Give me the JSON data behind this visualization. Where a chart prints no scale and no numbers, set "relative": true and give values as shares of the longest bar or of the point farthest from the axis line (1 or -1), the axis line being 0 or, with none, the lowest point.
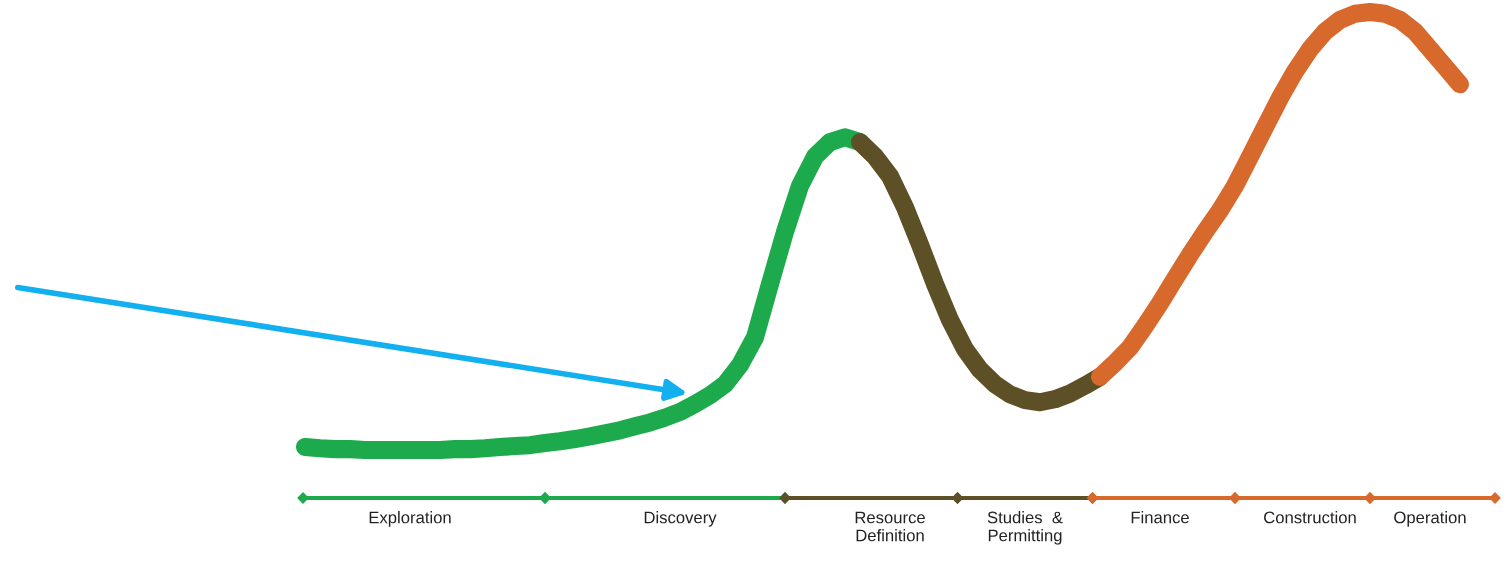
{
  "chart_data": {
    "type": "line",
    "relative": true,
    "tick_labels": "x",
    "line_style": "solid",
    "categories": [
      null,
      null,
      null,
      null,
      null,
      null,
      null,
      "Exploration",
      null,
      null,
      null,
      null,
      null,
      null,
      null,
      null,
      null,
      null,
      null,
      null,
      null,
      null,
      null,
      null,
      null,
      "Discovery",
      null,
      null,
      null,
      null,
      null,
      null,
      null,
      null,
      null,
      null,
      null,
      null,
      null,
      "Resource\nDefinition",
      null,
      null,
      null,
      null,
      null,
      null,
      null,
      null,
      "Studies  &\nPermitting",
      null,
      null,
      null,
      null,
      null,
      null,
      null,
      null,
      "Finance",
      null,
      null,
      null,
      null,
      null,
      null,
      null,
      null,
      null,
      "Construction",
      null,
      null,
      null,
      null,
      null,
      null,
      null,
      "Operation",
      null,
      null
    ],
    "series": [
      {
        "color": "#1daa4c",
        "values": [
          0.007,
          0.004,
          0.002,
          0.002,
          0,
          0,
          0,
          0,
          0,
          0,
          0.002,
          0.002,
          0.004,
          0.007,
          0.009,
          0.011,
          0.016,
          0.02,
          0.025,
          0.031,
          0.038,
          0.045,
          0.054,
          0.063,
          0.074,
          0.087,
          0.105,
          0.125,
          0.15,
          0.194,
          0.257,
          0.379,
          0.498,
          0.603,
          0.67,
          0.703,
          0.714,
          0.703,
          null,
          null,
          null,
          null,
          null,
          null,
          null,
          null,
          null,
          null,
          null,
          null,
          null,
          null,
          null,
          null,
          null,
          null,
          null,
          null,
          null,
          null,
          null,
          null,
          null,
          null,
          null,
          null,
          null,
          null,
          null,
          null,
          null,
          null,
          null,
          null,
          null,
          null,
          null,
          null
        ]
      },
      {
        "color": "#5e5026",
        "values": [
          null,
          null,
          null,
          null,
          null,
          null,
          null,
          null,
          null,
          null,
          null,
          null,
          null,
          null,
          null,
          null,
          null,
          null,
          null,
          null,
          null,
          null,
          null,
          null,
          null,
          null,
          null,
          null,
          null,
          null,
          null,
          null,
          null,
          null,
          null,
          null,
          null,
          0.703,
          0.67,
          0.625,
          0.554,
          0.469,
          0.379,
          0.297,
          0.23,
          0.183,
          0.15,
          0.127,
          0.114,
          0.109,
          0.116,
          0.129,
          0.147,
          0.167,
          null,
          null,
          null,
          null,
          null,
          null,
          null,
          null,
          null,
          null,
          null,
          null,
          null,
          null,
          null,
          null,
          null,
          null,
          null,
          null,
          null,
          null,
          null,
          null
        ]
      },
      {
        "color": "#d8692c",
        "values": [
          null,
          null,
          null,
          null,
          null,
          null,
          null,
          null,
          null,
          null,
          null,
          null,
          null,
          null,
          null,
          null,
          null,
          null,
          null,
          null,
          null,
          null,
          null,
          null,
          null,
          null,
          null,
          null,
          null,
          null,
          null,
          null,
          null,
          null,
          null,
          null,
          null,
          null,
          null,
          null,
          null,
          null,
          null,
          null,
          null,
          null,
          null,
          null,
          null,
          null,
          null,
          null,
          null,
          0.167,
          0.199,
          0.234,
          0.283,
          0.335,
          0.391,
          0.446,
          0.498,
          0.547,
          0.603,
          0.67,
          0.737,
          0.804,
          0.864,
          0.915,
          0.955,
          0.982,
          0.996,
          1,
          0.996,
          0.982,
          0.955,
          0.915,
          0.875,
          0.835
        ]
      }
    ]
  }
}
